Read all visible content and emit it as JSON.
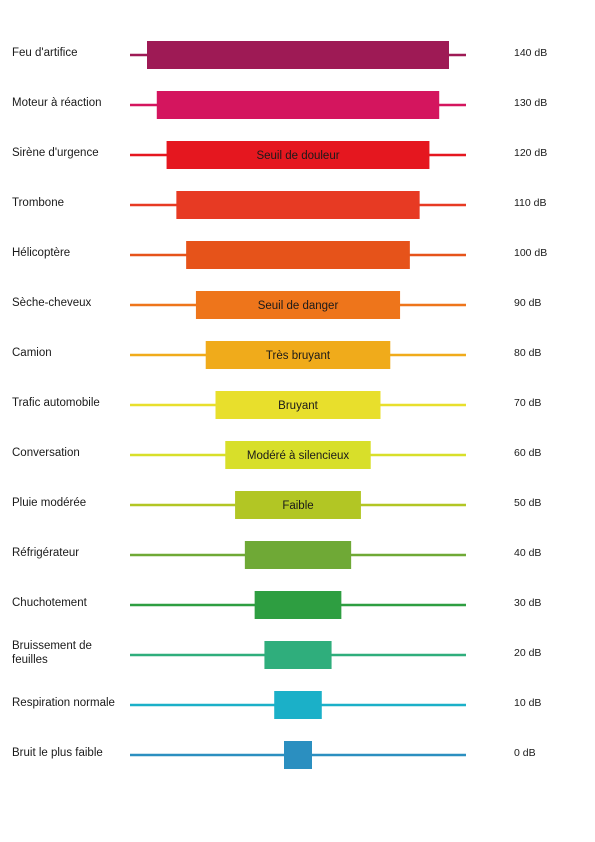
{
  "chart_data": {
    "type": "bar",
    "title": "",
    "xlabel": "",
    "ylabel": "",
    "rows": [
      {
        "source": "Feu d'artifice",
        "db_label": "140 dB",
        "db": 140,
        "zone": "",
        "color": "#9e1a55"
      },
      {
        "source": "Moteur à réaction",
        "db_label": "130 dB",
        "db": 130,
        "zone": "",
        "color": "#d4155e"
      },
      {
        "source": "Sirène d'urgence",
        "db_label": "120 dB",
        "db": 120,
        "zone": "Seuil de douleur",
        "color": "#e5171f"
      },
      {
        "source": "Trombone",
        "db_label": "110 dB",
        "db": 110,
        "zone": "",
        "color": "#e73a23"
      },
      {
        "source": "Hélicoptère",
        "db_label": "100 dB",
        "db": 100,
        "zone": "",
        "color": "#e6531a"
      },
      {
        "source": "Sèche-cheveux",
        "db_label": "90 dB",
        "db": 90,
        "zone": "Seuil de danger",
        "color": "#ee751b"
      },
      {
        "source": "Camion",
        "db_label": "80 dB",
        "db": 80,
        "zone": "Très bruyant",
        "color": "#f0ab1b"
      },
      {
        "source": "Trafic automobile",
        "db_label": "70 dB",
        "db": 70,
        "zone": "Bruyant",
        "color": "#e8df2c"
      },
      {
        "source": "Conversation",
        "db_label": "60 dB",
        "db": 60,
        "zone": "Modéré à silencieux",
        "color": "#d8df2a"
      },
      {
        "source": "Pluie modérée",
        "db_label": "50 dB",
        "db": 50,
        "zone": "Faible",
        "color": "#b2c624"
      },
      {
        "source": "Réfrigérateur",
        "db_label": "40 dB",
        "db": 40,
        "zone": "",
        "color": "#6fa936"
      },
      {
        "source": "Chuchotement",
        "db_label": "30 dB",
        "db": 30,
        "zone": "",
        "color": "#2e9e41"
      },
      {
        "source": "Bruissement de feuilles",
        "db_label": "20 dB",
        "db": 20,
        "zone": "",
        "color": "#2fae7c"
      },
      {
        "source": "Respiration normale",
        "db_label": "10 dB",
        "db": 10,
        "zone": "",
        "color": "#1bb0c8"
      },
      {
        "source": "Bruit le plus faible",
        "db_label": "0 dB",
        "db": 0,
        "zone": "",
        "color": "#2b8fc0"
      }
    ]
  }
}
